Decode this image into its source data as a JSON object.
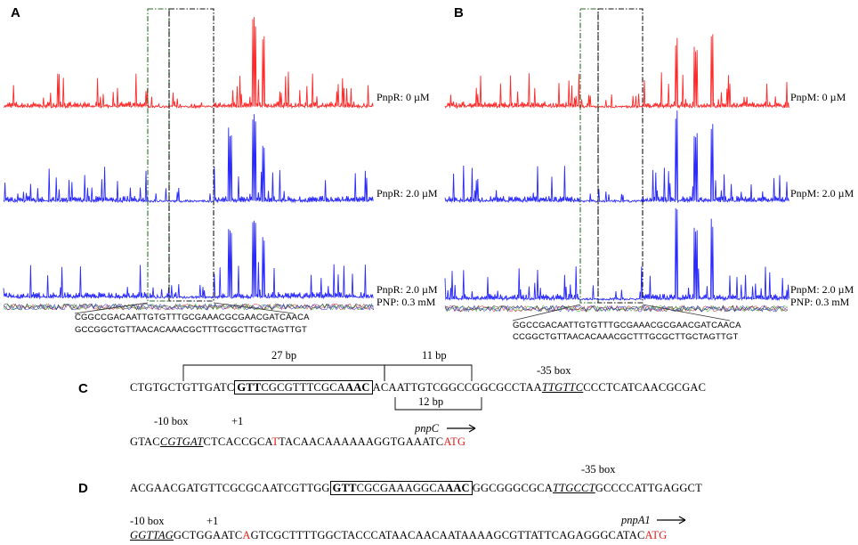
{
  "panels": {
    "A": {
      "letter": "A",
      "traces": [
        {
          "label": "PnpR: 0 µM",
          "color": "#ff2a2a"
        },
        {
          "label": "PnpR: 2.0 µM",
          "color": "#2a2aff"
        },
        {
          "label": "PnpR: 2.0 µM",
          "label2": "PNP: 0.3 mM",
          "color": "#2a2aff"
        }
      ],
      "seq_top_green": "CGGCCGACAATT",
      "seq_top_black": "GTGTTTGCGAAACGCGAACGATCAACA",
      "seq_bot_green": "GCCGGCTGTTAA",
      "seq_bot_black": "CACAAACGCTTTGCGCTTGCTAGTTGT"
    },
    "B": {
      "letter": "B",
      "traces": [
        {
          "label": "PnpM: 0 µM",
          "color": "#ff2a2a"
        },
        {
          "label": "PnpM: 2.0 µM",
          "color": "#2a2aff"
        },
        {
          "label": "PnpM: 2.0 µM",
          "label2": "PNP: 0.3 mM",
          "color": "#2a2aff"
        }
      ],
      "seq_top_green": "GGCCGACAATT",
      "seq_top_black": "GTGTTTGCGAAACGCGAACGATCAACA",
      "seq_bot_green": "CCGGCTGTTAA",
      "seq_bot_black": "CACAAACGCTTTGCGCTTGCTAGTTGT"
    },
    "C": {
      "letter": "C",
      "bracket_27": "27 bp",
      "bracket_11": "11 bp",
      "bracket_12": "12 bp",
      "box35": "-35 box",
      "line1_a": "CTGTGCTGTTGATC",
      "line1_box_b1": "GTT",
      "line1_box_mid": "CGCGTTTCGCA",
      "line1_box_b2": "AAC",
      "line1_c": "ACAATTGTCGGCCGGCGCCTAA",
      "line1_u": "TTGTTC",
      "line1_d": "CCCTCATCAACGCGAC",
      "box10": "-10 box",
      "plus1": "+1",
      "gene": "pnpC",
      "line2_a": "GTAC",
      "line2_u": "CGTGAT",
      "line2_b": "CTCACCGCA",
      "line2_tss": "T",
      "line2_c": "TACAACAAAAAAGGTGAAATC",
      "line2_atg": "ATG"
    },
    "D": {
      "letter": "D",
      "box35": "-35 box",
      "line1_a": "ACGAACGATGTTCGCGCAATCGTTGG",
      "line1_box_b1": "GTT",
      "line1_box_mid": "CGCGAAAGGCA",
      "line1_box_b2": "AAC",
      "line1_c": "GGCGGGCGCA",
      "line1_u": "TTGCCT",
      "line1_d": "GCCCCATTGAGGCT",
      "box10": "-10 box",
      "plus1": "+1",
      "gene": "pnpA1",
      "line2_u": "GGTTAG",
      "line2_b": "GCTGGAATC",
      "line2_tss": "A",
      "line2_c": "GTCGCTTTTGGCTACCCATAACAACAATAAAAGCGTTATTCAGAGGGCATAC",
      "line2_atg": "ATG"
    }
  }
}
